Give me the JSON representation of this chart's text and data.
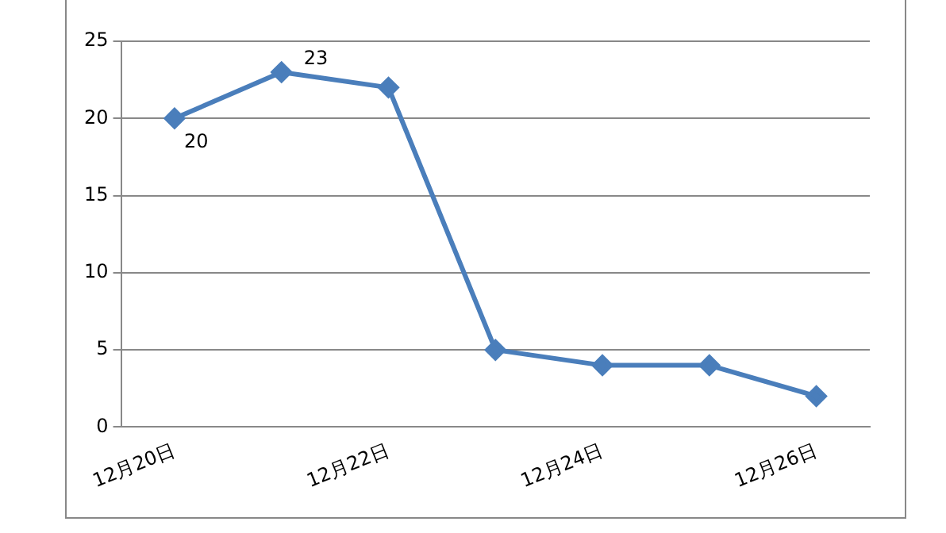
{
  "chart_data": {
    "type": "line",
    "categories": [
      "12月20日",
      null,
      "12月22日",
      null,
      "12月24日",
      null,
      "12月26日"
    ],
    "series": [
      {
        "color": "#4a7ebb",
        "values": [
          20,
          23,
          22,
          5,
          4,
          4,
          2
        ],
        "value_labels": [
          "20",
          "23",
          null,
          null,
          null,
          null,
          null
        ]
      }
    ],
    "ylim": [
      0,
      25
    ],
    "yticks": [
      0,
      5,
      10,
      15,
      20,
      25
    ],
    "grid": "y",
    "legend": false,
    "marker": "diamond",
    "line_style": "solid"
  }
}
